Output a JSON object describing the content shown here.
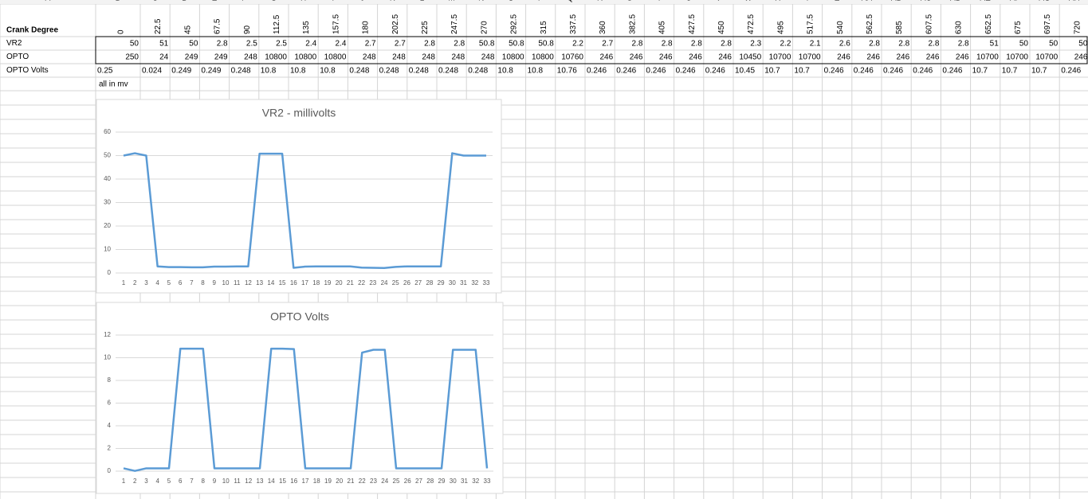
{
  "sheet": {
    "columns": [
      "A",
      "B",
      "C",
      "D",
      "E",
      "F",
      "G",
      "H",
      "I",
      "J",
      "K",
      "L",
      "M",
      "N",
      "O",
      "P",
      "Q",
      "R",
      "S",
      "T",
      "U",
      "V",
      "W",
      "X",
      "Y",
      "Z",
      "AA",
      "AB",
      "AC",
      "AD",
      "AE",
      "AF",
      "AG",
      "AH"
    ],
    "row_labels": [
      "Crank Degree",
      "VR2",
      "OPTO",
      "OPTO Volts"
    ],
    "crank_degree": [
      0,
      22.5,
      45,
      67.5,
      90,
      112.5,
      135,
      157.5,
      180,
      202.5,
      225,
      247.5,
      270,
      292.5,
      315,
      337.5,
      360,
      382.5,
      405,
      427.5,
      450,
      472.5,
      495,
      517.5,
      540,
      562.5,
      585,
      607.5,
      630,
      652.5,
      675,
      697.5,
      720
    ],
    "vr2": [
      50,
      51,
      50,
      2.8,
      2.5,
      2.5,
      2.4,
      2.4,
      2.7,
      2.7,
      2.8,
      2.8,
      50.8,
      50.8,
      50.8,
      2.2,
      2.7,
      2.8,
      2.8,
      2.8,
      2.8,
      2.3,
      2.2,
      2.1,
      2.6,
      2.8,
      2.8,
      2.8,
      2.8,
      51,
      50,
      50,
      50
    ],
    "opto": [
      250,
      24,
      249,
      249,
      248,
      10800,
      10800,
      10800,
      248,
      248,
      248,
      248,
      248,
      10800,
      10800,
      10760,
      246,
      246,
      246,
      246,
      246,
      10450,
      10700,
      10700,
      246,
      246,
      246,
      246,
      246,
      10700,
      10700,
      10700,
      246
    ],
    "opto_volts": [
      0.25,
      0.024,
      0.249,
      0.249,
      0.248,
      10.8,
      10.8,
      10.8,
      0.248,
      0.248,
      0.248,
      0.248,
      0.248,
      10.8,
      10.8,
      10.76,
      0.246,
      0.246,
      0.246,
      0.246,
      0.246,
      10.45,
      10.7,
      10.7,
      0.246,
      0.246,
      0.246,
      0.246,
      0.246,
      10.7,
      10.7,
      10.7,
      0.246
    ],
    "note": "all in mv"
  },
  "chart_data": [
    {
      "type": "line",
      "title": "VR2 - millivolts",
      "categories": [
        1,
        2,
        3,
        4,
        5,
        6,
        7,
        8,
        9,
        10,
        11,
        12,
        13,
        14,
        15,
        16,
        17,
        18,
        19,
        20,
        21,
        22,
        23,
        24,
        25,
        26,
        27,
        28,
        29,
        30,
        31,
        32,
        33
      ],
      "values": [
        50,
        51,
        50,
        2.8,
        2.5,
        2.5,
        2.4,
        2.4,
        2.7,
        2.7,
        2.8,
        2.8,
        50.8,
        50.8,
        50.8,
        2.2,
        2.7,
        2.8,
        2.8,
        2.8,
        2.8,
        2.3,
        2.2,
        2.1,
        2.6,
        2.8,
        2.8,
        2.8,
        2.8,
        51,
        50,
        50,
        50
      ],
      "color": "#5b9bd5",
      "ylim": [
        0,
        60
      ],
      "yticks": [
        0,
        10,
        20,
        30,
        40,
        50,
        60
      ],
      "grid": true
    },
    {
      "type": "line",
      "title": "OPTO Volts",
      "categories": [
        1,
        2,
        3,
        4,
        5,
        6,
        7,
        8,
        9,
        10,
        11,
        12,
        13,
        14,
        15,
        16,
        17,
        18,
        19,
        20,
        21,
        22,
        23,
        24,
        25,
        26,
        27,
        28,
        29,
        30,
        31,
        32,
        33
      ],
      "values": [
        0.25,
        0.024,
        0.249,
        0.249,
        0.248,
        10.8,
        10.8,
        10.8,
        0.248,
        0.248,
        0.248,
        0.248,
        0.248,
        10.8,
        10.8,
        10.76,
        0.246,
        0.246,
        0.246,
        0.246,
        0.246,
        10.45,
        10.7,
        10.7,
        0.246,
        0.246,
        0.246,
        0.246,
        0.246,
        10.7,
        10.7,
        10.7,
        0.246
      ],
      "color": "#5b9bd5",
      "ylim": [
        0,
        12
      ],
      "yticks": [
        0,
        2,
        4,
        6,
        8,
        10,
        12
      ],
      "grid": true
    }
  ]
}
